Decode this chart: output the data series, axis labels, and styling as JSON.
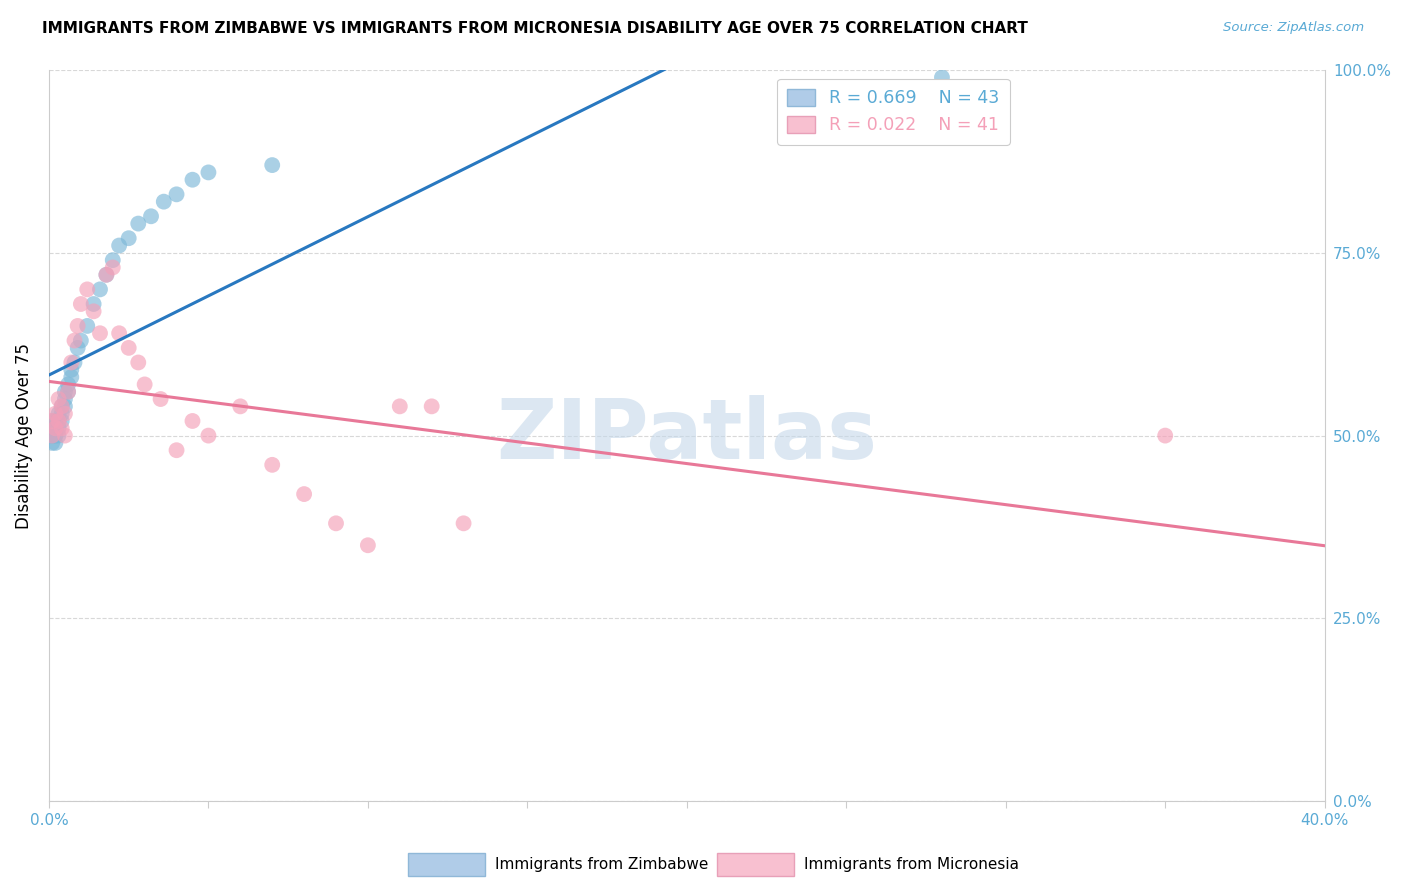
{
  "title": "IMMIGRANTS FROM ZIMBABWE VS IMMIGRANTS FROM MICRONESIA DISABILITY AGE OVER 75 CORRELATION CHART",
  "source": "Source: ZipAtlas.com",
  "ylabel": "Disability Age Over 75",
  "ytick_labels": [
    "0.0%",
    "25.0%",
    "50.0%",
    "75.0%",
    "100.0%"
  ],
  "ytick_values": [
    0.0,
    0.25,
    0.5,
    0.75,
    1.0
  ],
  "xlim": [
    0.0,
    0.4
  ],
  "ylim": [
    0.0,
    1.0
  ],
  "blue_scatter_color": "#7db8d8",
  "pink_scatter_color": "#f4a0b8",
  "blue_line_color": "#2878c0",
  "pink_line_color": "#e87898",
  "watermark": "ZIPatlas",
  "watermark_color": "#c5d8ea",
  "grid_color": "#d8d8d8",
  "tick_label_color": "#5aaad5",
  "legend_blue_label": "Immigrants from Zimbabwe",
  "legend_pink_label": "Immigrants from Micronesia",
  "blue_x": [
    0.001,
    0.001,
    0.001,
    0.001,
    0.001,
    0.001,
    0.002,
    0.002,
    0.002,
    0.002,
    0.002,
    0.003,
    0.003,
    0.003,
    0.003,
    0.004,
    0.004,
    0.004,
    0.005,
    0.005,
    0.005,
    0.006,
    0.006,
    0.007,
    0.007,
    0.008,
    0.009,
    0.01,
    0.012,
    0.014,
    0.016,
    0.018,
    0.02,
    0.022,
    0.025,
    0.028,
    0.032,
    0.036,
    0.04,
    0.045,
    0.05,
    0.07,
    0.28
  ],
  "blue_y": [
    0.5,
    0.51,
    0.52,
    0.5,
    0.49,
    0.51,
    0.5,
    0.51,
    0.52,
    0.5,
    0.49,
    0.52,
    0.53,
    0.51,
    0.5,
    0.53,
    0.54,
    0.52,
    0.55,
    0.54,
    0.56,
    0.57,
    0.56,
    0.58,
    0.59,
    0.6,
    0.62,
    0.63,
    0.65,
    0.68,
    0.7,
    0.72,
    0.74,
    0.76,
    0.77,
    0.79,
    0.8,
    0.82,
    0.83,
    0.85,
    0.86,
    0.87,
    0.99
  ],
  "pink_x": [
    0.001,
    0.001,
    0.002,
    0.002,
    0.003,
    0.003,
    0.004,
    0.004,
    0.005,
    0.005,
    0.006,
    0.007,
    0.008,
    0.009,
    0.01,
    0.012,
    0.014,
    0.016,
    0.018,
    0.02,
    0.022,
    0.025,
    0.028,
    0.03,
    0.035,
    0.04,
    0.045,
    0.05,
    0.06,
    0.07,
    0.08,
    0.09,
    0.1,
    0.11,
    0.12,
    0.13,
    0.35
  ],
  "pink_y": [
    0.52,
    0.5,
    0.53,
    0.51,
    0.55,
    0.52,
    0.54,
    0.51,
    0.5,
    0.53,
    0.56,
    0.6,
    0.63,
    0.65,
    0.68,
    0.7,
    0.67,
    0.64,
    0.72,
    0.73,
    0.64,
    0.62,
    0.6,
    0.57,
    0.55,
    0.48,
    0.52,
    0.5,
    0.54,
    0.46,
    0.42,
    0.38,
    0.35,
    0.54,
    0.54,
    0.38,
    0.5
  ]
}
